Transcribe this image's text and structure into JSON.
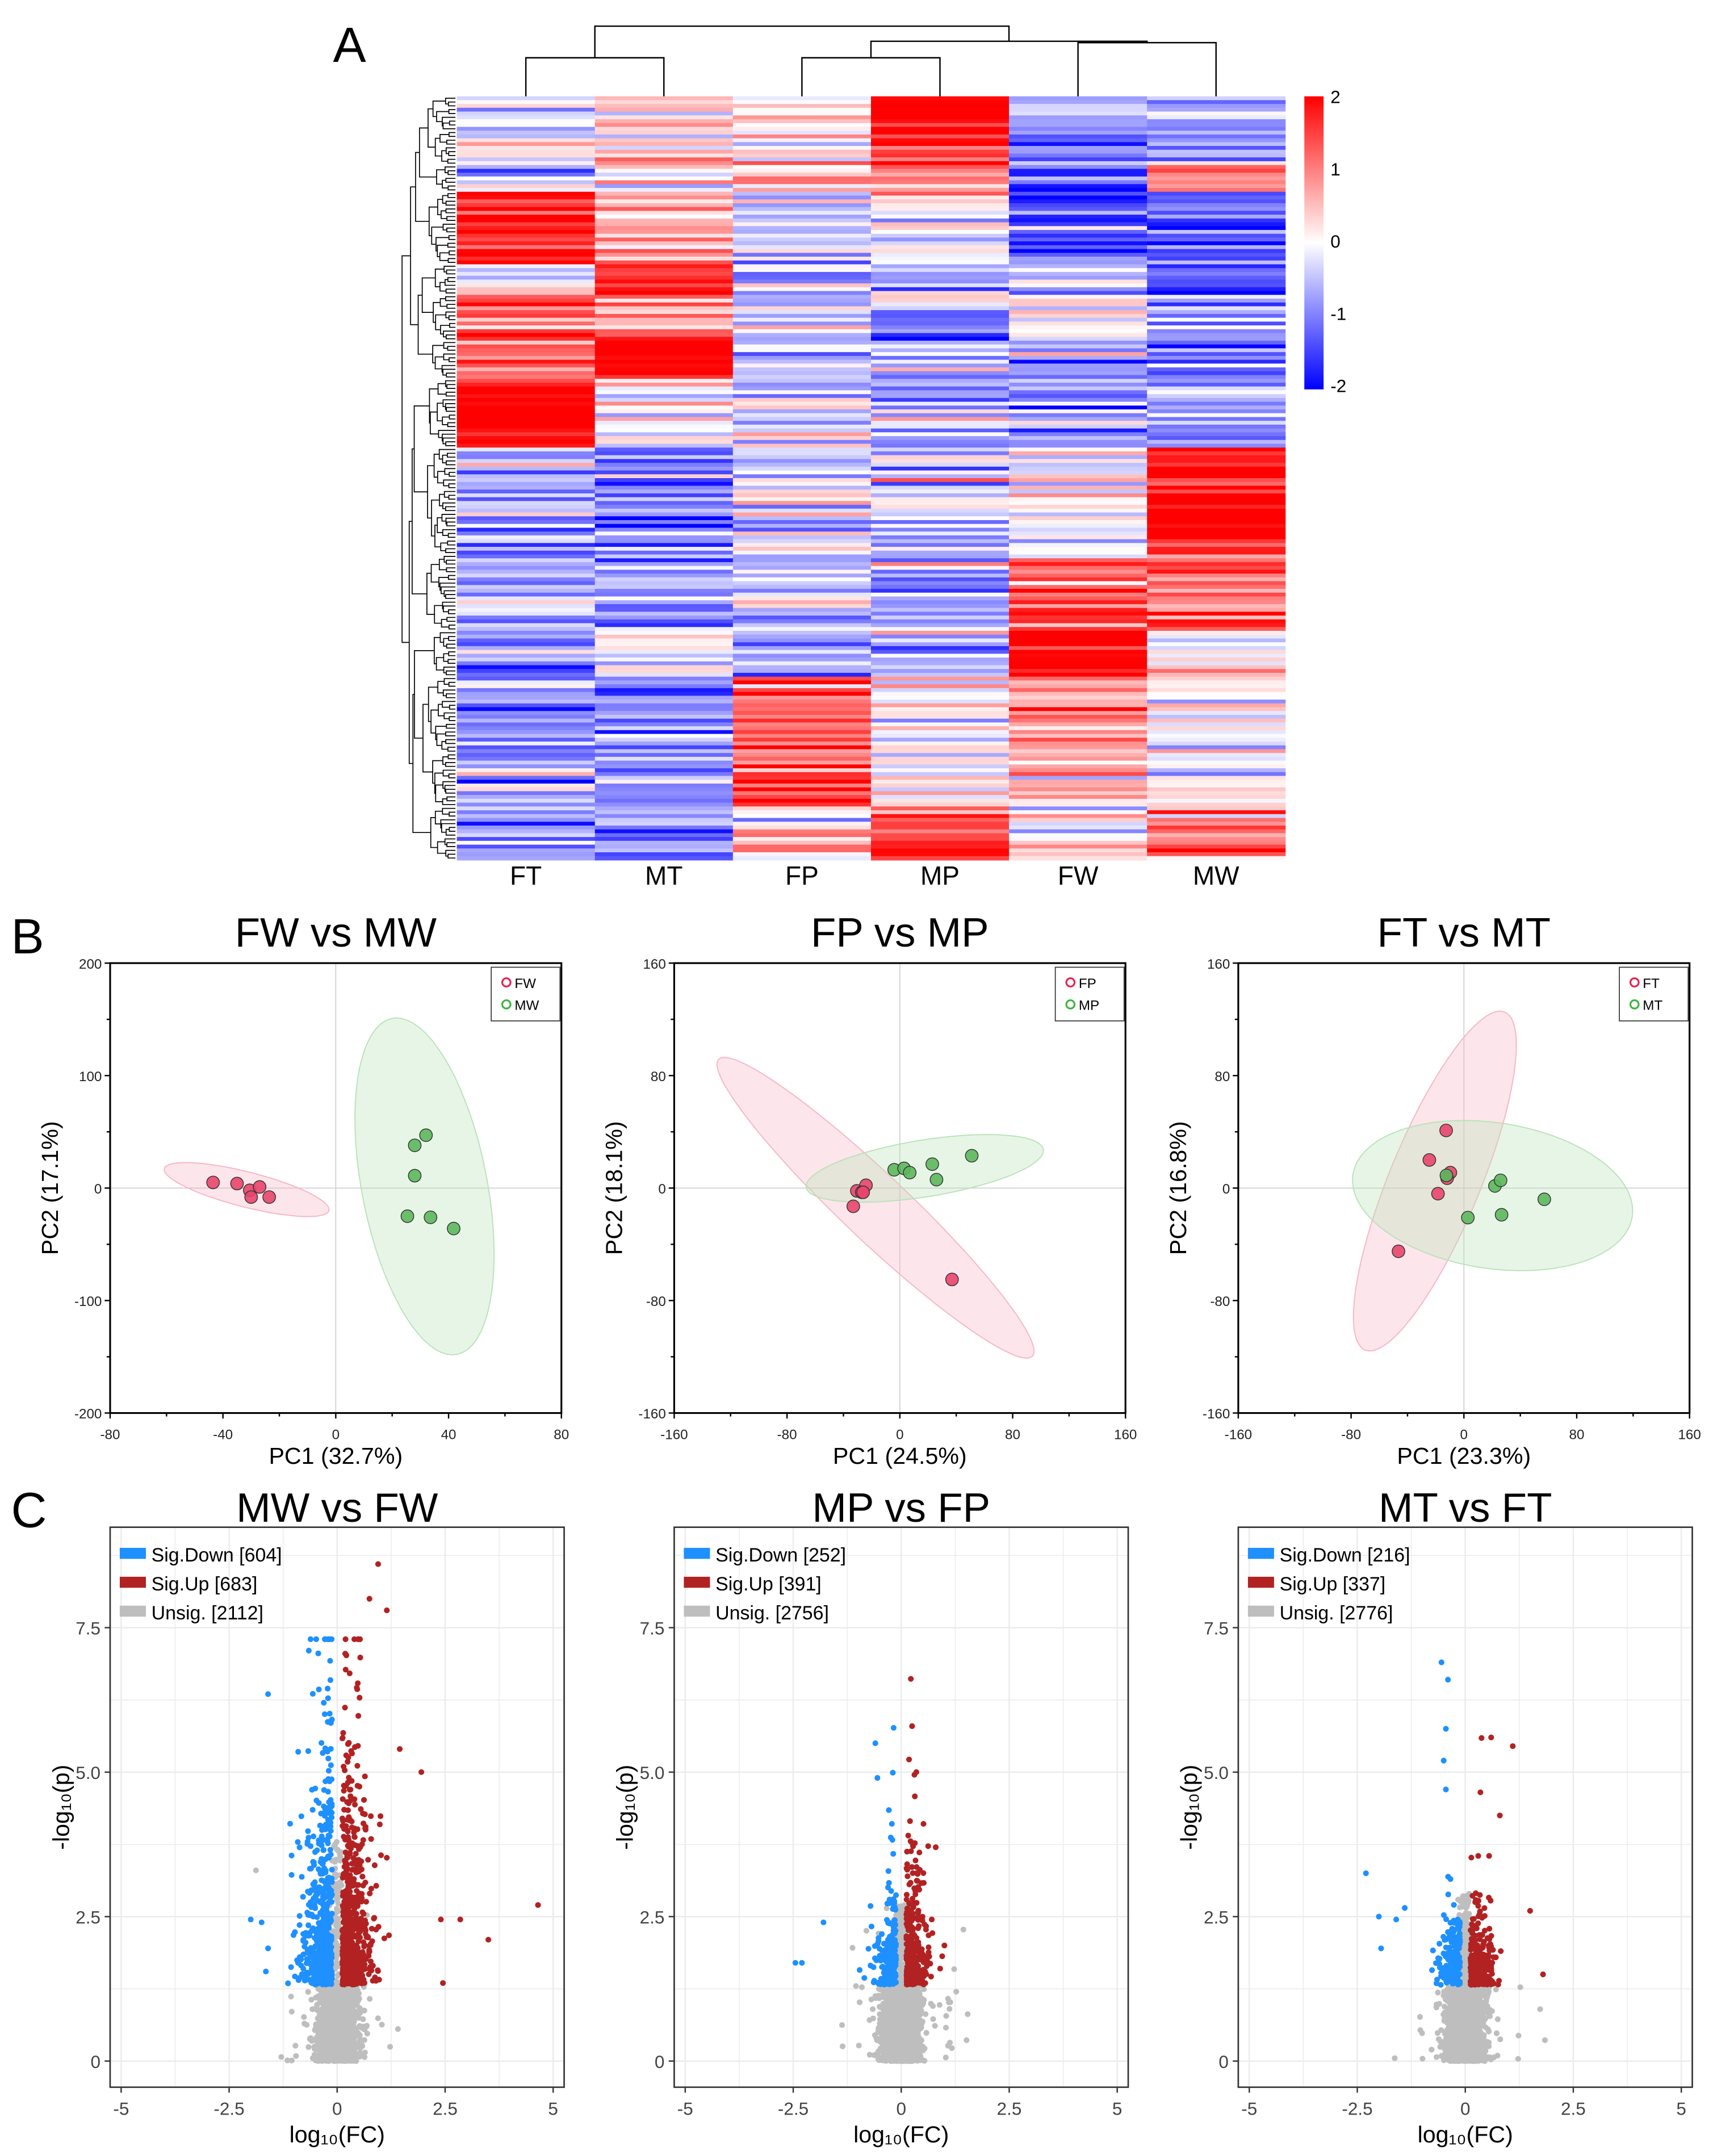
{
  "figure": {
    "panel_labels": [
      "A",
      "B",
      "C"
    ]
  },
  "chart_data": [
    {
      "type": "heatmap",
      "columns": [
        "FT",
        "MT",
        "FP",
        "MP",
        "FW",
        "MW"
      ],
      "color_scale": {
        "min": -2,
        "max": 2,
        "low": "#0000FF",
        "mid": "#FFFFFF",
        "high": "#FF0000"
      },
      "colorbar_ticks": [
        "2",
        "1",
        "0",
        "-1",
        "-2"
      ],
      "column_dendrogram": "((FT,MT),((FP,MP),(FW,MW)))",
      "row_dendrogram": true,
      "row_blocks": [
        {
          "rows": 18,
          "mean_zscore": [
            -0.3,
            0.3,
            0.2,
            1.8,
            -0.8,
            -1.0
          ]
        },
        {
          "rows": 7,
          "mean_zscore": [
            -0.5,
            0.0,
            0.0,
            0.8,
            -1.6,
            0.8
          ]
        },
        {
          "rows": 19,
          "mean_zscore": [
            1.8,
            0.6,
            -0.5,
            0.0,
            -1.4,
            -1.0
          ]
        },
        {
          "rows": 8,
          "mean_zscore": [
            0.0,
            2.0,
            -0.6,
            -0.5,
            -0.5,
            -1.3
          ]
        },
        {
          "rows": 12,
          "mean_zscore": [
            1.6,
            0.8,
            -0.7,
            -0.7,
            0.0,
            -1.0
          ]
        },
        {
          "rows": 10,
          "mean_zscore": [
            0.8,
            2.0,
            -0.6,
            -0.4,
            -0.7,
            -1.0
          ]
        },
        {
          "rows": 18,
          "mean_zscore": [
            2.0,
            0.0,
            -0.3,
            -0.7,
            -0.8,
            -0.5
          ]
        },
        {
          "rows": 28,
          "mean_zscore": [
            -0.8,
            -0.9,
            -0.2,
            -0.3,
            0.0,
            2.0
          ]
        },
        {
          "rows": 20,
          "mean_zscore": [
            -0.7,
            -0.8,
            -0.5,
            -0.6,
            1.3,
            1.0
          ]
        },
        {
          "rows": 12,
          "mean_zscore": [
            -0.8,
            -0.2,
            -0.6,
            -0.6,
            2.0,
            0.0
          ]
        },
        {
          "rows": 34,
          "mean_zscore": [
            -0.8,
            -1.0,
            1.5,
            0.0,
            0.8,
            -0.1
          ]
        },
        {
          "rows": 14,
          "mean_zscore": [
            -1.0,
            -0.8,
            0.5,
            1.5,
            0.0,
            1.0
          ]
        }
      ]
    },
    {
      "type": "scatter",
      "kind": "pca",
      "title": "FW vs MW",
      "xlabel": "PC1 (32.7%)",
      "ylabel": "PC2 (17.1%)",
      "xlim": [
        -80,
        80
      ],
      "ylim": [
        -200,
        200
      ],
      "xticks": [
        "-80",
        "-40",
        "0",
        "40",
        "80"
      ],
      "yticks": [
        "200",
        "100",
        "0",
        "-100",
        "-200"
      ],
      "legend": "top-right",
      "confidence_ellipses": true,
      "grid": false,
      "series": [
        {
          "name": "FW",
          "color": "#E8456B",
          "points": [
            [
              -43.5,
              5
            ],
            [
              -35,
              4
            ],
            [
              -30.5,
              -2
            ],
            [
              -30,
              -8
            ],
            [
              -27,
              1
            ],
            [
              -23.6,
              -8
            ]
          ]
        },
        {
          "name": "MW",
          "color": "#5CB85C",
          "points": [
            [
              28,
              38
            ],
            [
              32,
              47
            ],
            [
              28,
              11
            ],
            [
              25.4,
              -25
            ],
            [
              33.6,
              -26
            ],
            [
              41.8,
              -36
            ]
          ]
        }
      ]
    },
    {
      "type": "scatter",
      "kind": "pca",
      "title": "FP vs MP",
      "xlabel": "PC1 (24.5%)",
      "ylabel": "PC2 (18.1%)",
      "xlim": [
        -160,
        160
      ],
      "ylim": [
        -160,
        160
      ],
      "xticks": [
        "-160",
        "-80",
        "0",
        "80",
        "160"
      ],
      "yticks": [
        "160",
        "80",
        "0",
        "-80",
        "-160"
      ],
      "legend": "top-right",
      "confidence_ellipses": true,
      "grid": false,
      "series": [
        {
          "name": "FP",
          "color": "#E8456B",
          "points": [
            [
              -30.5,
              -2
            ],
            [
              -24,
              2
            ],
            [
              -27,
              -3
            ],
            [
              -26,
              -3
            ],
            [
              -33,
              -13
            ],
            [
              37,
              -65
            ]
          ]
        },
        {
          "name": "MP",
          "color": "#5CB85C",
          "points": [
            [
              -4,
              13
            ],
            [
              3,
              14
            ],
            [
              7,
              11
            ],
            [
              23,
              17
            ],
            [
              26,
              6
            ],
            [
              51,
              23
            ]
          ]
        }
      ]
    },
    {
      "type": "scatter",
      "kind": "pca",
      "title": "FT vs MT",
      "xlabel": "PC1 (23.3%)",
      "ylabel": "PC2 (16.8%)",
      "xlim": [
        -160,
        160
      ],
      "ylim": [
        -160,
        160
      ],
      "xticks": [
        "-160",
        "-80",
        "0",
        "80",
        "160"
      ],
      "yticks": [
        "160",
        "80",
        "0",
        "-80",
        "-160"
      ],
      "legend": "top-right",
      "confidence_ellipses": true,
      "grid": false,
      "series": [
        {
          "name": "FT",
          "color": "#E8456B",
          "points": [
            [
              -12.6,
              41
            ],
            [
              -24.5,
              20
            ],
            [
              -9.6,
              11
            ],
            [
              -11.9,
              7
            ],
            [
              -18.4,
              -4
            ],
            [
              -46.4,
              -45
            ]
          ]
        },
        {
          "name": "MT",
          "color": "#5CB85C",
          "points": [
            [
              -12.4,
              9
            ],
            [
              2.8,
              -21
            ],
            [
              22,
              1.5
            ],
            [
              26,
              5.5
            ],
            [
              26.7,
              -19
            ],
            [
              57,
              -8
            ]
          ]
        }
      ]
    },
    {
      "type": "scatter",
      "kind": "volcano",
      "title": "MW vs FW",
      "xlabel": "log₁₀(FC)",
      "ylabel": "-log₁₀(p)",
      "xlim": [
        -5.25,
        5.25
      ],
      "ylim": [
        -0.45,
        9.25
      ],
      "xticks": [
        "-5",
        "-2.5",
        "0",
        "2.5",
        "5"
      ],
      "yticks": [
        "0",
        "2.5",
        "5.0",
        "7.5"
      ],
      "legend": "top-left",
      "grid": true,
      "series": [
        {
          "label": "Sig.Down [604]",
          "count": 604,
          "color": "#1E90FF",
          "outliers": [
            [
              -1.6,
              6.35
            ],
            [
              -2.0,
              2.45
            ],
            [
              -1.75,
              2.4
            ],
            [
              -1.6,
              1.95
            ],
            [
              -1.65,
              1.55
            ]
          ]
        },
        {
          "label": "Sig.Up [683]",
          "count": 683,
          "color": "#B22222",
          "outliers": [
            [
              4.65,
              2.7
            ],
            [
              3.5,
              2.1
            ],
            [
              2.45,
              1.35
            ],
            [
              1.95,
              5.0
            ],
            [
              0.95,
              8.6
            ],
            [
              2.85,
              2.45
            ],
            [
              2.4,
              2.45
            ],
            [
              0.75,
              8.0
            ],
            [
              1.15,
              7.8
            ],
            [
              1.45,
              5.4
            ]
          ]
        },
        {
          "label": "Unsig. [2112]",
          "count": 2112,
          "color": "#BEBEBE"
        }
      ]
    },
    {
      "type": "scatter",
      "kind": "volcano",
      "title": "MP vs FP",
      "xlabel": "log₁₀(FC)",
      "ylabel": "-log₁₀(p)",
      "xlim": [
        -5.25,
        5.25
      ],
      "ylim": [
        -0.45,
        9.25
      ],
      "xticks": [
        "-5",
        "-2.5",
        "0",
        "2.5",
        "5"
      ],
      "yticks": [
        "0",
        "2.5",
        "5.0",
        "7.5"
      ],
      "legend": "top-left",
      "grid": true,
      "series": [
        {
          "label": "Sig.Down [252]",
          "count": 252,
          "color": "#1E90FF",
          "outliers": [
            [
              -2.3,
              1.7
            ],
            [
              -2.45,
              1.7
            ],
            [
              -1.8,
              2.4
            ],
            [
              -0.6,
              5.5
            ],
            [
              -0.55,
              4.9
            ]
          ]
        },
        {
          "label": "Sig.Up [391]",
          "count": 391,
          "color": "#B22222",
          "outliers": [
            [
              0.35,
              5.0
            ],
            [
              0.8,
              3.7
            ],
            [
              1.0,
              2.0
            ],
            [
              0.9,
              1.6
            ]
          ]
        },
        {
          "label": "Unsig. [2756]",
          "count": 2756,
          "color": "#BEBEBE"
        }
      ]
    },
    {
      "type": "scatter",
      "kind": "volcano",
      "title": "MT vs FT",
      "xlabel": "log₁₀(FC)",
      "ylabel": "-log₁₀(p)",
      "xlim": [
        -5.25,
        5.25
      ],
      "ylim": [
        -0.45,
        9.25
      ],
      "xticks": [
        "-5",
        "-2.5",
        "0",
        "2.5",
        "5"
      ],
      "yticks": [
        "0",
        "2.5",
        "5.0",
        "7.5"
      ],
      "legend": "top-left",
      "grid": true,
      "series": [
        {
          "label": "Sig.Down [216]",
          "count": 216,
          "color": "#1E90FF",
          "outliers": [
            [
              -2.3,
              3.25
            ],
            [
              -0.55,
              6.9
            ],
            [
              -0.4,
              6.6
            ],
            [
              -2.0,
              2.5
            ],
            [
              -1.6,
              2.45
            ],
            [
              -1.4,
              2.65
            ],
            [
              -1.95,
              1.95
            ],
            [
              -0.45,
              5.75
            ],
            [
              -0.5,
              5.2
            ],
            [
              -0.45,
              4.7
            ]
          ]
        },
        {
          "label": "Sig.Up [337]",
          "count": 337,
          "color": "#B22222",
          "outliers": [
            [
              0.6,
              5.6
            ],
            [
              1.1,
              5.45
            ],
            [
              0.35,
              4.65
            ],
            [
              0.8,
              4.25
            ],
            [
              1.8,
              1.5
            ],
            [
              1.5,
              2.6
            ],
            [
              0.3,
              3.55
            ],
            [
              0.55,
              3.55
            ]
          ]
        },
        {
          "label": "Unsig. [2776]",
          "count": 2776,
          "color": "#BEBEBE"
        }
      ]
    }
  ]
}
